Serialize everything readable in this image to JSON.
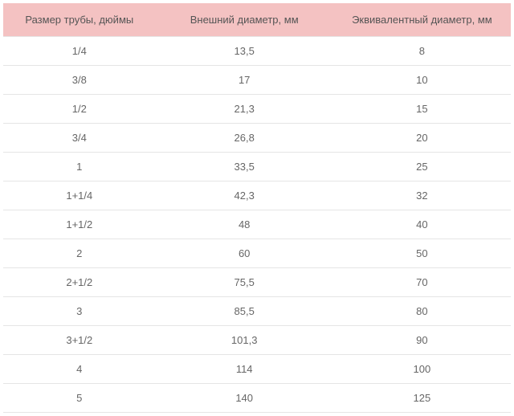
{
  "table": {
    "columns": [
      "Размер трубы, дюймы",
      "Внешний диаметр, мм",
      "Эквивалентный диаметр, мм"
    ],
    "rows": [
      [
        "1/4",
        "13,5",
        "8"
      ],
      [
        "3/8",
        "17",
        "10"
      ],
      [
        "1/2",
        "21,3",
        "15"
      ],
      [
        "3/4",
        "26,8",
        "20"
      ],
      [
        "1",
        "33,5",
        "25"
      ],
      [
        "1+1/4",
        "42,3",
        "32"
      ],
      [
        "1+1/2",
        "48",
        "40"
      ],
      [
        "2",
        "60",
        "50"
      ],
      [
        "2+1/2",
        "75,5",
        "70"
      ],
      [
        "3",
        "85,5",
        "80"
      ],
      [
        "3+1/2",
        "101,3",
        "90"
      ],
      [
        "4",
        "114",
        "100"
      ],
      [
        "5",
        "140",
        "125"
      ]
    ],
    "header_bg": "#f4c2c2",
    "header_text_color": "#555555",
    "cell_text_color": "#666666",
    "border_color": "#e5e5e5",
    "background": "#ffffff",
    "font_size_header": 13,
    "font_size_cell": 13,
    "column_widths_pct": [
      30,
      35,
      35
    ]
  }
}
